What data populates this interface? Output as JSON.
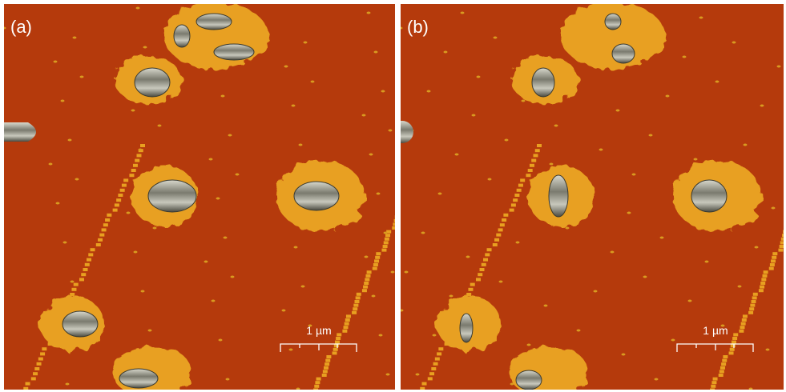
{
  "panels": [
    {
      "label": "(a)",
      "scale_bar": "1 µm"
    },
    {
      "label": "(b)",
      "scale_bar": "1 µm"
    }
  ]
}
